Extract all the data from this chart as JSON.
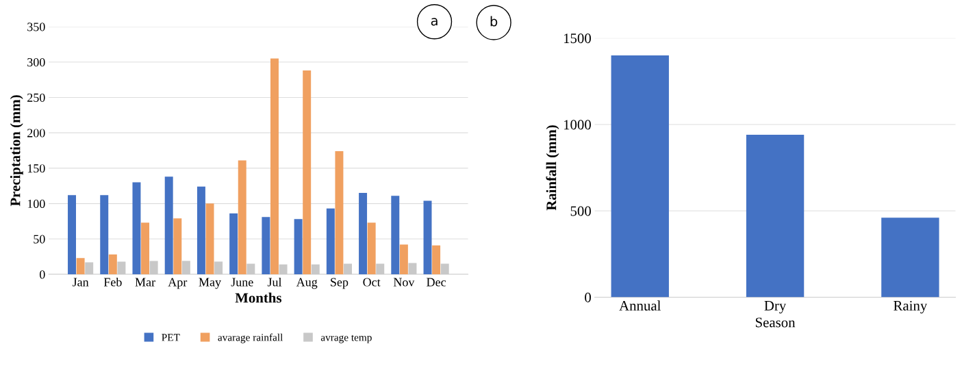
{
  "chart_data": [
    {
      "type": "bar",
      "xlabel": "Months",
      "ylabel": "Preciptation (mm)",
      "annotations": [
        "a"
      ],
      "categories": [
        "Jan",
        "Feb",
        "Mar",
        "Apr",
        "May",
        "June",
        "Jul",
        "Aug",
        "Sep",
        "Oct",
        "Nov",
        "Dec"
      ],
      "series": [
        {
          "name": "PET",
          "color": "#4472c4",
          "values": [
            112,
            112,
            130,
            138,
            124,
            86,
            81,
            78,
            93,
            115,
            111,
            104
          ]
        },
        {
          "name": "avarage rainfall",
          "color": "#f0a060",
          "values": [
            23,
            28,
            73,
            79,
            100,
            161,
            305,
            288,
            174,
            73,
            42,
            41
          ]
        },
        {
          "name": "avrage temp",
          "color": "#c8c8c8",
          "values": [
            17,
            18,
            19,
            19,
            18,
            15,
            14,
            14,
            15,
            15,
            16,
            15
          ]
        }
      ],
      "ylim": [
        0,
        350
      ],
      "yticks": [
        0,
        50,
        100,
        150,
        200,
        250,
        300,
        350
      ],
      "grid": "y",
      "legend": "bottom"
    },
    {
      "type": "bar",
      "xlabel": "Season",
      "ylabel": "Rainfall (mm)",
      "annotations": [
        "b"
      ],
      "categories": [
        "Annual",
        "Dry",
        "Rainy"
      ],
      "series": [
        {
          "color": "#4472c4",
          "values": [
            1400,
            940,
            460
          ]
        }
      ],
      "ylim": [
        0,
        1500
      ],
      "yticks": [
        0,
        500,
        1000,
        1500
      ],
      "grid": "y"
    }
  ]
}
